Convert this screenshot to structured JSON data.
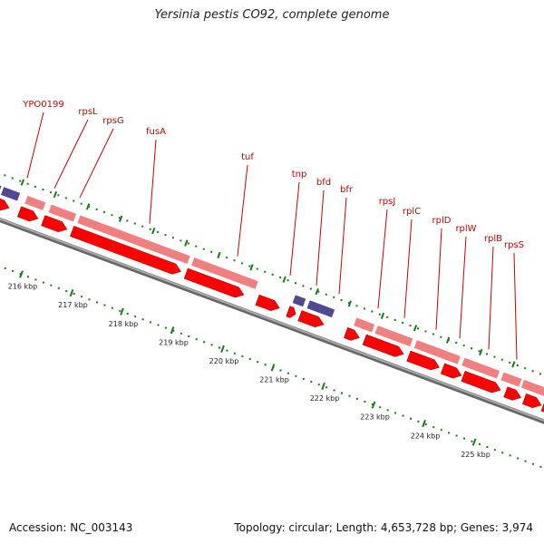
{
  "title": "Yersinia pestis CO92, complete genome",
  "footer": {
    "accession": "Accession: NC_003143",
    "summary": "Topology: circular; Length: 4,653,728 bp; Genes: 3,974"
  },
  "colors": {
    "gene_forward": "#f08080",
    "gene_cds": "#ff0000",
    "gene_other": "#504890",
    "backbone": "#888888",
    "tick": "#1a7a1a",
    "label": "#cc0000"
  },
  "scale": {
    "unit": "kbp",
    "ticks": [
      "216 kbp",
      "217 kbp",
      "218 kbp",
      "219 kbp",
      "220 kbp",
      "221 kbp",
      "222 kbp",
      "223 kbp",
      "224 kbp",
      "225 kbp"
    ]
  },
  "gene_labels": [
    "YPO0199",
    "rpsL",
    "rpsG",
    "fusA",
    "tuf",
    "tnp",
    "bfd",
    "bfr",
    "rpsJ",
    "rplC",
    "rplD",
    "rplW",
    "rplB",
    "rpsS"
  ]
}
